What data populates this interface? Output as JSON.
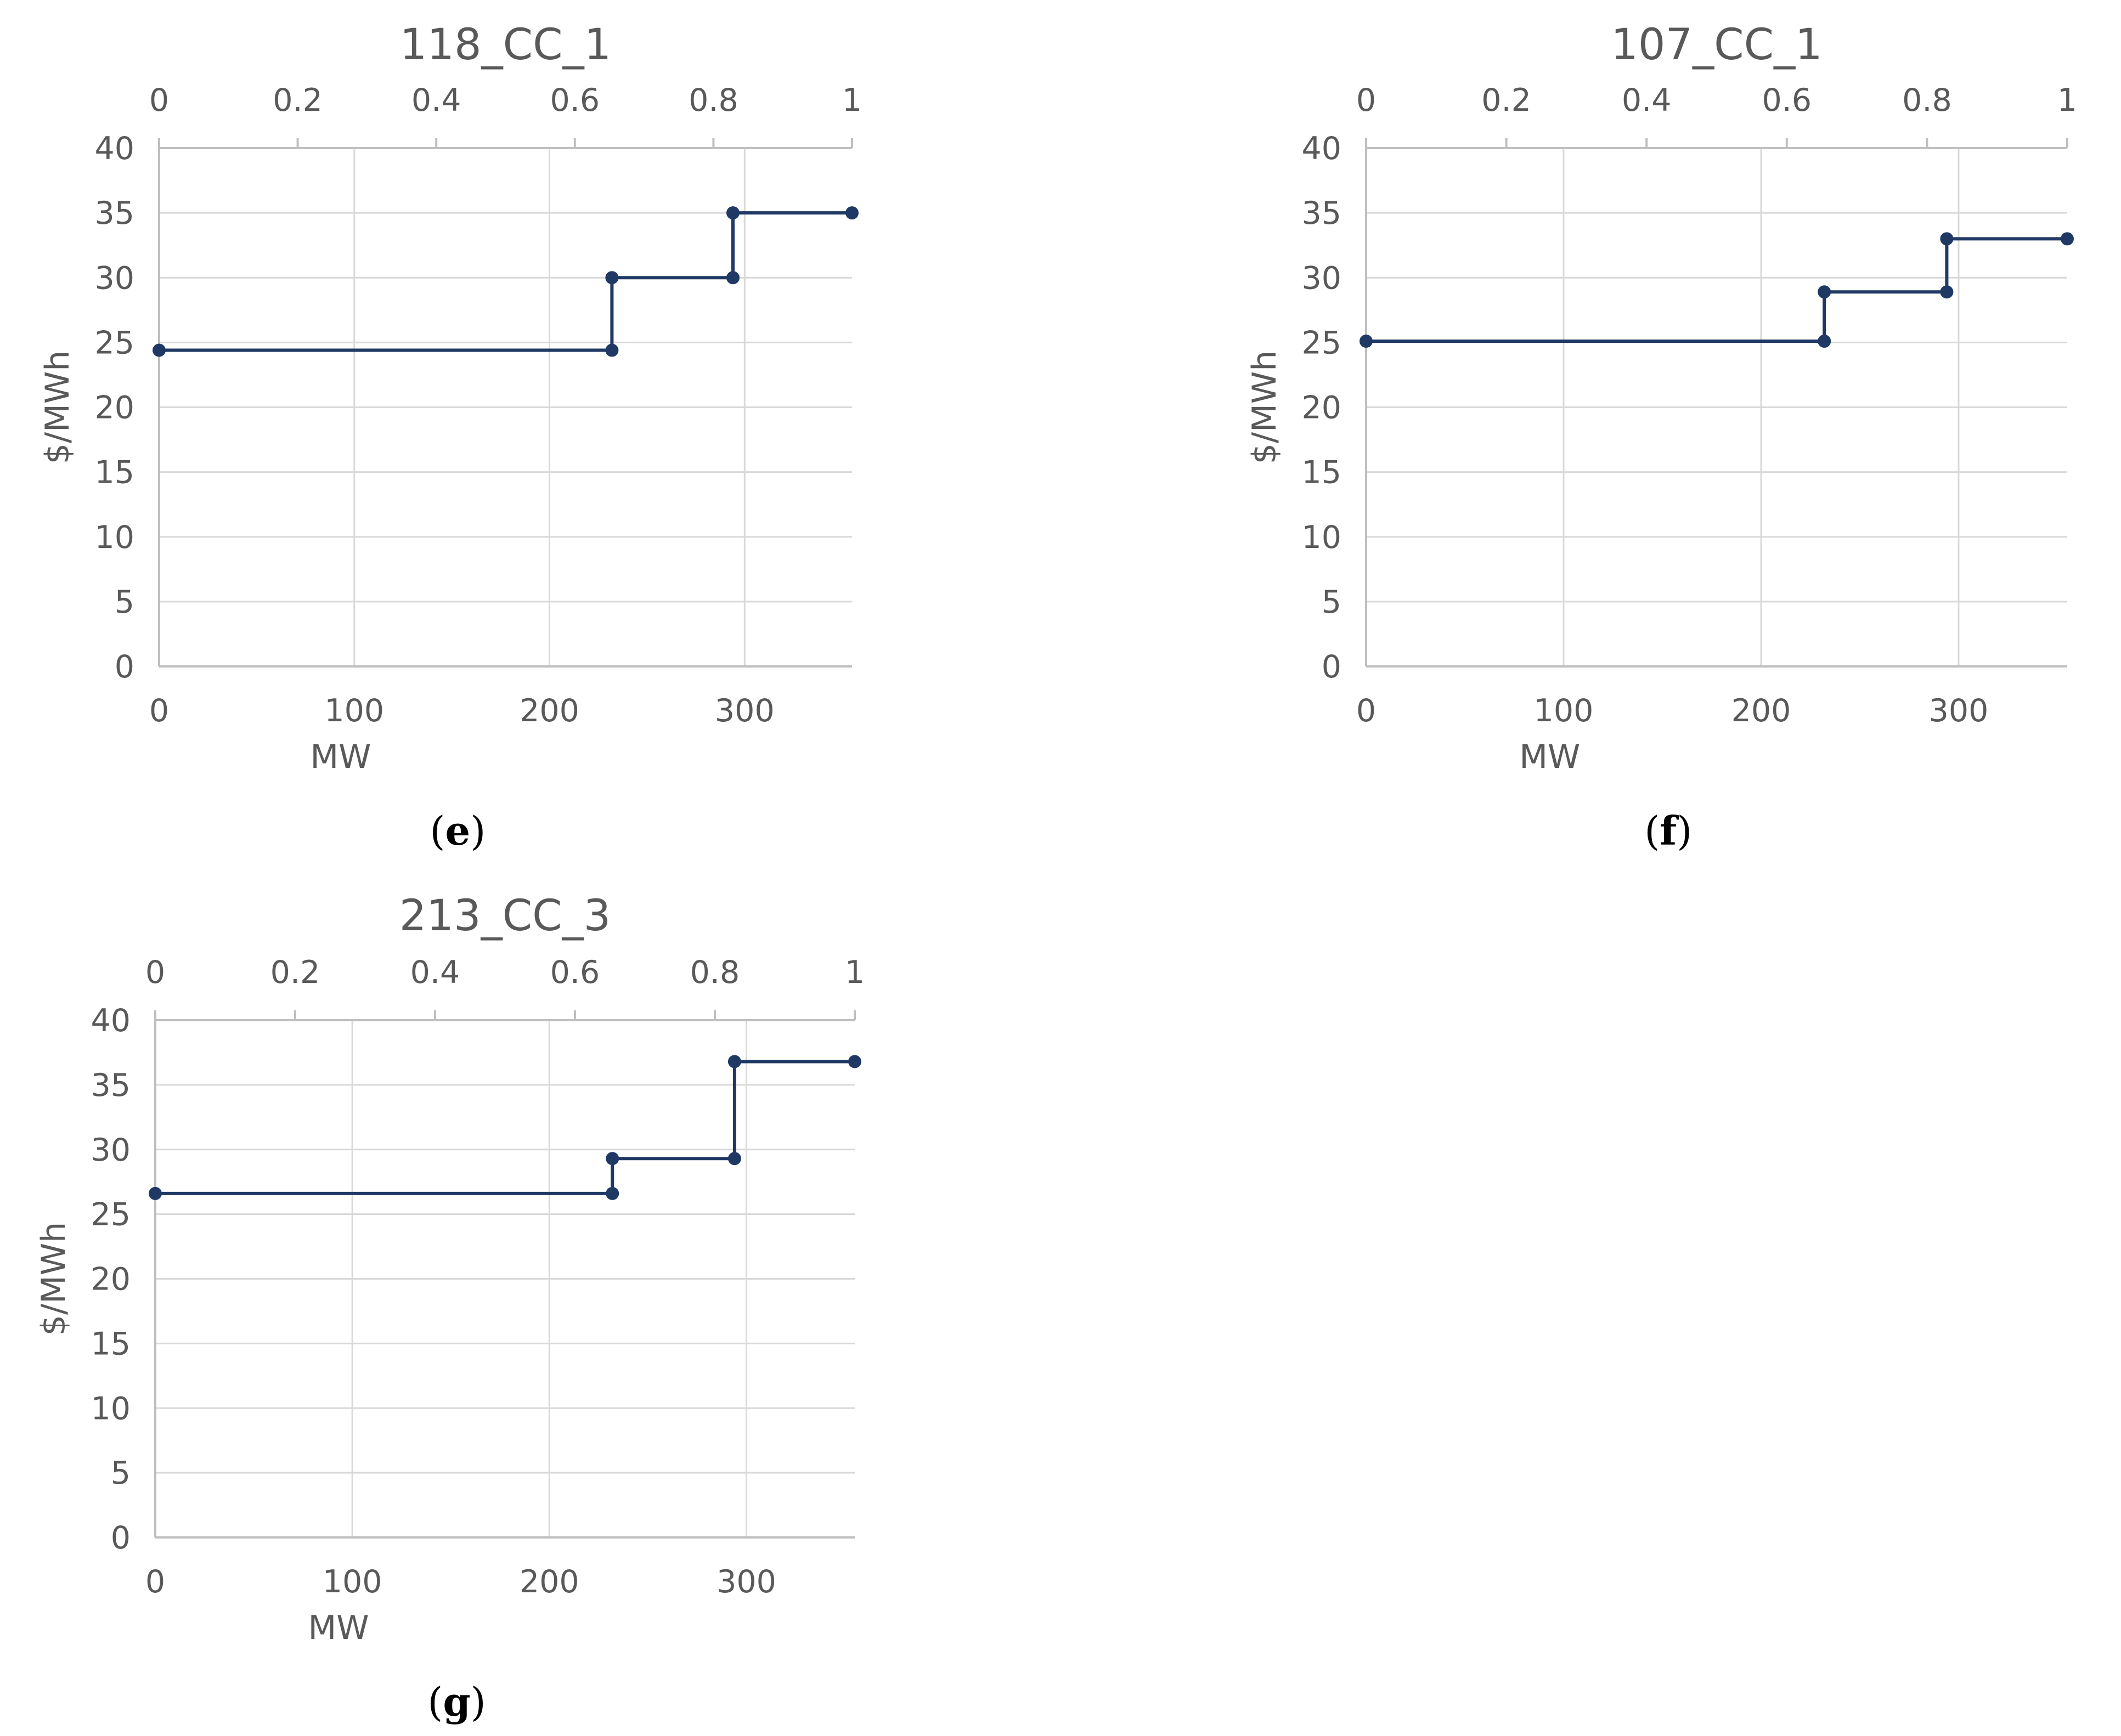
{
  "figure": {
    "background": "#ffffff",
    "series_color": "#1f3864",
    "grid_color": "#d9d9d9",
    "text_color": "#595959"
  },
  "chart_data": [
    {
      "type": "line",
      "subtype": "step",
      "title": "118_CC_1",
      "caption_letter": "e",
      "xlabel": "MW",
      "ylabel": "$/MWh",
      "xlim": [
        0,
        355
      ],
      "ylim": [
        0,
        40
      ],
      "x_ticks": [
        "0",
        "100",
        "200",
        "300"
      ],
      "y_ticks": [
        "0",
        "5",
        "10",
        "15",
        "20",
        "25",
        "30",
        "35",
        "40"
      ],
      "secondary_x": {
        "lim": [
          0,
          1
        ],
        "ticks": [
          "0",
          "0.2",
          "0.4",
          "0.6",
          "0.8",
          "1"
        ]
      },
      "grid": true,
      "series": [
        {
          "name": "118_CC_1",
          "x": [
            0,
            232,
            232,
            294,
            294,
            355
          ],
          "y": [
            24.4,
            24.4,
            30,
            30,
            35,
            35
          ]
        }
      ]
    },
    {
      "type": "line",
      "subtype": "step",
      "title": "107_CC_1",
      "caption_letter": "f",
      "xlabel": "MW",
      "ylabel": "$/MWh",
      "xlim": [
        0,
        355
      ],
      "ylim": [
        0,
        40
      ],
      "x_ticks": [
        "0",
        "100",
        "200",
        "300"
      ],
      "y_ticks": [
        "0",
        "5",
        "10",
        "15",
        "20",
        "25",
        "30",
        "35",
        "40"
      ],
      "secondary_x": {
        "lim": [
          0,
          1
        ],
        "ticks": [
          "0",
          "0.2",
          "0.4",
          "0.6",
          "0.8",
          "1"
        ]
      },
      "grid": true,
      "series": [
        {
          "name": "107_CC_1",
          "x": [
            0,
            232,
            232,
            294,
            294,
            355
          ],
          "y": [
            25.1,
            25.1,
            28.9,
            28.9,
            33,
            33
          ]
        }
      ]
    },
    {
      "type": "line",
      "subtype": "step",
      "title": "213_CC_3",
      "caption_letter": "g",
      "xlabel": "MW",
      "ylabel": "$/MWh",
      "xlim": [
        0,
        355
      ],
      "ylim": [
        0,
        40
      ],
      "x_ticks": [
        "0",
        "100",
        "200",
        "300"
      ],
      "y_ticks": [
        "0",
        "5",
        "10",
        "15",
        "20",
        "25",
        "30",
        "35",
        "40"
      ],
      "secondary_x": {
        "lim": [
          0,
          1
        ],
        "ticks": [
          "0",
          "0.2",
          "0.4",
          "0.6",
          "0.8",
          "1"
        ]
      },
      "grid": true,
      "series": [
        {
          "name": "213_CC_3",
          "x": [
            0,
            232,
            232,
            294,
            294,
            355
          ],
          "y": [
            26.6,
            26.6,
            29.3,
            29.3,
            36.8,
            36.8
          ]
        }
      ]
    }
  ]
}
